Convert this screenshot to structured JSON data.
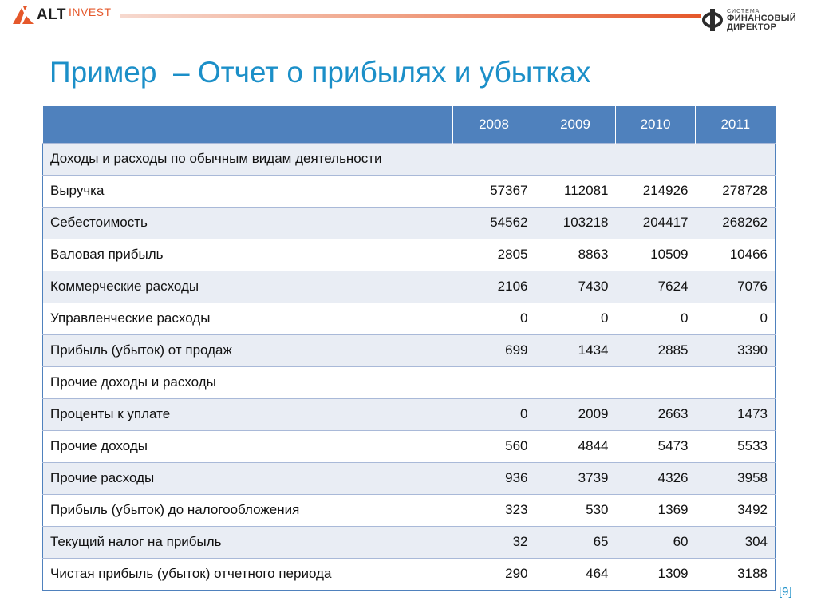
{
  "brand": {
    "left_alt": "ALT",
    "left_invest": "INVEST",
    "right_line1": "СИСТЕМА",
    "right_line2": "ФИНАНСОВЫЙ",
    "right_line3": "ДИРЕКТОР",
    "accent_color": "#e5582b"
  },
  "title": "Пример  – Отчет о прибылях и убытках",
  "table": {
    "header": [
      "",
      "2008",
      "2009",
      "2010",
      "2011"
    ],
    "rows": [
      {
        "label": "Доходы и расходы по обычным видам деятельности",
        "section": true,
        "values": []
      },
      {
        "label": "Выручка",
        "values": [
          "57367",
          "112081",
          "214926",
          "278728"
        ]
      },
      {
        "label": "Себестоимость",
        "values": [
          "54562",
          "103218",
          "204417",
          "268262"
        ]
      },
      {
        "label": "Валовая прибыль",
        "values": [
          "2805",
          "8863",
          "10509",
          "10466"
        ]
      },
      {
        "label": "Коммерческие расходы",
        "values": [
          "2106",
          "7430",
          "7624",
          "7076"
        ]
      },
      {
        "label": "Управленческие расходы",
        "values": [
          "0",
          "0",
          "0",
          "0"
        ]
      },
      {
        "label": "Прибыль (убыток) от продаж",
        "values": [
          "699",
          "1434",
          "2885",
          "3390"
        ]
      },
      {
        "label": "Прочие доходы и расходы",
        "section": true,
        "values": []
      },
      {
        "label": "Проценты к уплате",
        "values": [
          "0",
          "2009",
          "2663",
          "1473"
        ]
      },
      {
        "label": "Прочие доходы",
        "values": [
          "560",
          "4844",
          "5473",
          "5533"
        ]
      },
      {
        "label": "Прочие расходы",
        "values": [
          "936",
          "3739",
          "4326",
          "3958"
        ]
      },
      {
        "label": "Прибыль (убыток) до налогообложения",
        "values": [
          "323",
          "530",
          "1369",
          "3492"
        ]
      },
      {
        "label": "Текущий налог на прибыль",
        "values": [
          "32",
          "65",
          "60",
          "304"
        ]
      },
      {
        "label": "Чистая прибыль (убыток) отчетного периода",
        "values": [
          "290",
          "464",
          "1309",
          "3188"
        ]
      }
    ]
  },
  "reference": "[9]",
  "colors": {
    "title": "#1b8fc8",
    "header_bg": "#4f81bd",
    "row_alt": "#e9edf4"
  }
}
